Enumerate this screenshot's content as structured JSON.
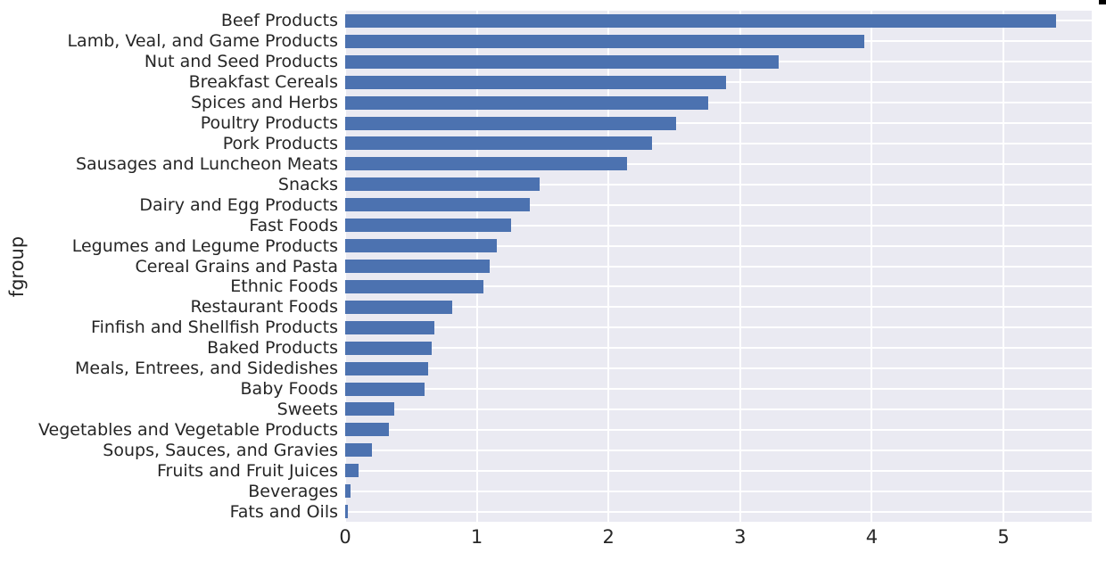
{
  "chart_data": {
    "type": "bar",
    "orientation": "horizontal",
    "title": "",
    "xlabel": "",
    "ylabel": "fgroup",
    "categories": [
      "Beef Products",
      "Lamb, Veal, and Game Products",
      "Nut and Seed Products",
      "Breakfast Cereals",
      "Spices and Herbs",
      "Poultry Products",
      "Pork Products",
      "Sausages and Luncheon Meats",
      "Snacks",
      "Dairy and Egg Products",
      "Fast Foods",
      "Legumes and Legume Products",
      "Cereal Grains and Pasta",
      "Ethnic Foods",
      "Restaurant Foods",
      "Finfish and Shellfish Products",
      "Baked Products",
      "Meals, Entrees, and Sidedishes",
      "Baby Foods",
      "Sweets",
      "Vegetables and Vegetable Products",
      "Soups, Sauces, and Gravies",
      "Fruits and Fruit Juices",
      "Beverages",
      "Fats and Oils"
    ],
    "values": [
      5.4,
      3.94,
      3.29,
      2.89,
      2.76,
      2.51,
      2.33,
      2.14,
      1.48,
      1.4,
      1.26,
      1.15,
      1.1,
      1.05,
      0.81,
      0.68,
      0.66,
      0.63,
      0.6,
      0.37,
      0.33,
      0.2,
      0.1,
      0.04,
      0.02
    ],
    "xticks": [
      "0",
      "1",
      "2",
      "3",
      "4",
      "5"
    ],
    "xtick_values": [
      0,
      1,
      2,
      3,
      4,
      5
    ],
    "xlim": [
      0,
      5.67
    ],
    "grid": true,
    "legend": false,
    "bar_color": "#4c72b0",
    "plot_bg": "#eaeaf2",
    "grid_color": "#ffffff",
    "text_color": "#262626"
  }
}
